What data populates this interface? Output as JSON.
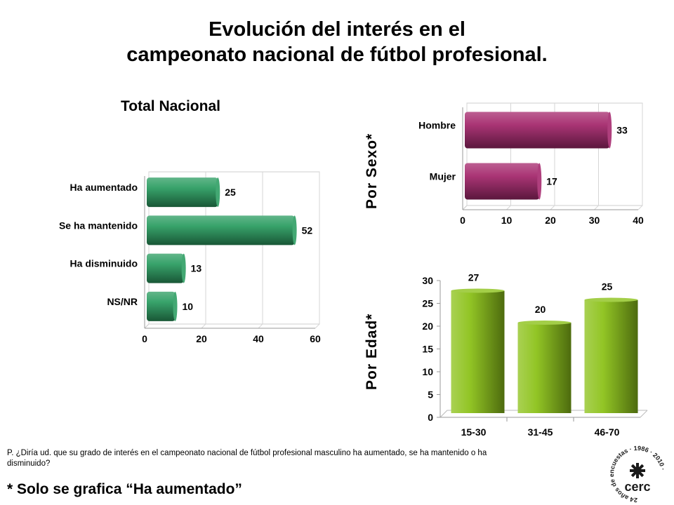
{
  "title_line1": "Evolución del interés en el",
  "title_line2": "campeonato nacional de fútbol profesional.",
  "colors": {
    "green": "#2e9e63",
    "magenta": "#a62a6e",
    "lime": "#8cc21a"
  },
  "chart_data": [
    {
      "type": "bar",
      "orientation": "horizontal",
      "title": "Total Nacional",
      "categories": [
        "Ha aumentado",
        "Se ha mantenido",
        "Ha disminuido",
        "NS/NR"
      ],
      "values": [
        25,
        52,
        13,
        10
      ],
      "xlim": [
        0,
        60
      ],
      "xticks": [
        "0",
        "20",
        "40",
        "60"
      ],
      "grid": true
    },
    {
      "type": "bar",
      "orientation": "horizontal",
      "axis_title": "Por Sexo*",
      "categories": [
        "Hombre",
        "Mujer"
      ],
      "values": [
        33,
        17
      ],
      "xlim": [
        0,
        40
      ],
      "xticks": [
        "0",
        "10",
        "20",
        "30",
        "40"
      ],
      "grid": true
    },
    {
      "type": "bar",
      "orientation": "vertical",
      "axis_title": "Por Edad*",
      "categories": [
        "15-30",
        "31-45",
        "46-70"
      ],
      "values": [
        27,
        20,
        25
      ],
      "ylim": [
        0,
        30
      ],
      "yticks": [
        "0",
        "5",
        "10",
        "15",
        "20",
        "25",
        "30"
      ],
      "grid": false
    }
  ],
  "question": "P. ¿Diría ud. que su grado de interés en el campeonato nacional de fútbol profesional masculino ha aumentado, se ha mantenido o ha disminuido?",
  "note": "* Solo se grafica “Ha aumentado”",
  "logo": {
    "ring_text": "24 años de encuestas · 1986 · 2010 ·",
    "name": "cerc"
  }
}
